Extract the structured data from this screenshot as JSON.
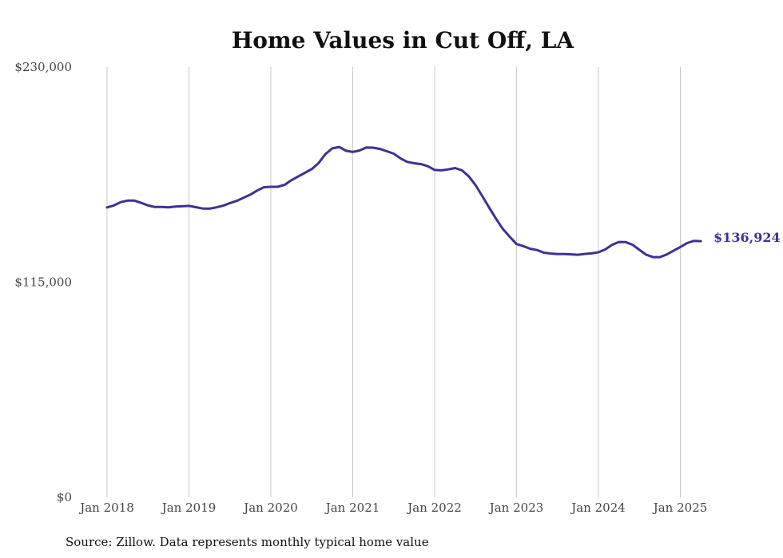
{
  "colors": {
    "line": "#3b3393",
    "grid": "#c8c8c8",
    "text": "#444444"
  },
  "source_note": "Source: Zillow. Data represents monthly typical home value",
  "chart_data": {
    "type": "line",
    "title": "Home Values in Cut Off, LA",
    "xlabel": "",
    "ylabel": "",
    "ylim": [
      0,
      230000
    ],
    "yticks": [
      {
        "value": 0,
        "label": "$0"
      },
      {
        "value": 115000,
        "label": "$115,000"
      },
      {
        "value": 230000,
        "label": "$230,000"
      }
    ],
    "xticks": [
      "Jan 2018",
      "Jan 2019",
      "Jan 2020",
      "Jan 2021",
      "Jan 2022",
      "Jan 2023",
      "Jan 2024",
      "Jan 2025"
    ],
    "grid": "vertical",
    "end_label": "$136,924",
    "x_start": "2018-01",
    "x_end": "2025-04",
    "values": [
      155000,
      156000,
      157800,
      158600,
      158600,
      157400,
      156000,
      155200,
      155200,
      155000,
      155400,
      155600,
      155800,
      155100,
      154400,
      154300,
      155000,
      155900,
      157300,
      158500,
      160100,
      161800,
      164000,
      165800,
      166000,
      166000,
      167000,
      169500,
      171500,
      173500,
      175500,
      178700,
      183500,
      186500,
      187300,
      185300,
      184600,
      185400,
      187000,
      186900,
      186200,
      185000,
      183700,
      181200,
      179300,
      178600,
      178100,
      177000,
      175000,
      174800,
      175300,
      176000,
      174800,
      171600,
      166800,
      160900,
      154800,
      148900,
      143400,
      139300,
      135400,
      134300,
      132900,
      132200,
      130800,
      130300,
      130000,
      130000,
      129900,
      129700,
      130100,
      130400,
      131000,
      132500,
      135000,
      136500,
      136400,
      135000,
      132300,
      129700,
      128400,
      128400,
      129800,
      131800,
      133800,
      135900,
      137100,
      136924
    ]
  }
}
